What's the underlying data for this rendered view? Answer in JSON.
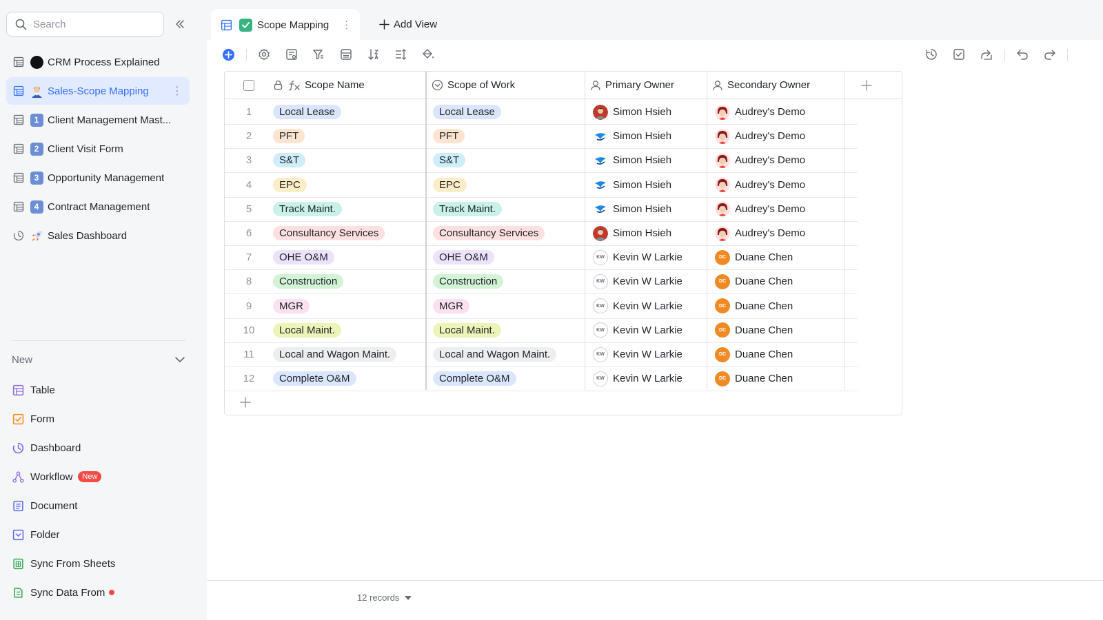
{
  "search": {
    "placeholder": "Search"
  },
  "sidebar": {
    "items": [
      {
        "label": "CRM Process Explained",
        "icon": "black-circle-emoji",
        "type": "table"
      },
      {
        "label": "Sales-Scope Mapping",
        "icon": "person-emoji",
        "type": "table",
        "active": true
      },
      {
        "label": "Client Management Mast...",
        "icon": "keycap-1",
        "number": "1",
        "type": "table"
      },
      {
        "label": "Client Visit Form",
        "icon": "keycap-2",
        "number": "2",
        "type": "table"
      },
      {
        "label": "Opportunity Management",
        "icon": "keycap-3",
        "number": "3",
        "type": "table"
      },
      {
        "label": "Contract Management",
        "icon": "keycap-4",
        "number": "4",
        "type": "table"
      },
      {
        "label": "Sales Dashboard",
        "icon": "rocket-emoji",
        "type": "dashboard"
      }
    ],
    "new_label": "New",
    "create_items": [
      {
        "label": "Table",
        "icon": "table-icon",
        "color": "#8e6be0"
      },
      {
        "label": "Form",
        "icon": "form-icon",
        "color": "#ff8800"
      },
      {
        "label": "Dashboard",
        "icon": "dashboard-icon",
        "color": "#5b65f5"
      },
      {
        "label": "Workflow",
        "icon": "workflow-icon",
        "color": "#8e6be0",
        "badge": "New"
      },
      {
        "label": "Document",
        "icon": "document-icon",
        "color": "#5b65f5"
      },
      {
        "label": "Folder",
        "icon": "folder-icon",
        "color": "#5b65f5"
      },
      {
        "label": "Sync From Sheets",
        "icon": "sheets-icon",
        "color": "#34a853"
      },
      {
        "label": "Sync Data From",
        "icon": "sync-data-icon",
        "color": "#34a853",
        "dot": true
      }
    ]
  },
  "tabs": {
    "active": {
      "label": "Scope Mapping",
      "icon": "check-emoji"
    },
    "add_view": "Add View"
  },
  "toolbar": {
    "left": [
      "add-record-icon",
      "settings-icon",
      "fields-icon",
      "filter-icon",
      "group-icon",
      "sort-icon",
      "row-height-icon",
      "color-fill-icon"
    ],
    "right": [
      "history-icon",
      "review-icon",
      "share-icon",
      "undo-icon",
      "redo-icon"
    ]
  },
  "colors": {
    "accent": "#3370ff",
    "active_bg": "#e1eaff",
    "border": "#dee0e3"
  },
  "table": {
    "columns": [
      {
        "label": "Scope Name",
        "icon": "formula-icon"
      },
      {
        "label": "Scope of Work",
        "icon": "single-select-icon"
      },
      {
        "label": "Primary Owner",
        "icon": "person-icon"
      },
      {
        "label": "Secondary Owner",
        "icon": "person-icon"
      }
    ],
    "rows": [
      {
        "num": "1",
        "scope": "Local Lease",
        "tag_color": "#dbe6fd",
        "primary": "Simon Hsieh",
        "primary_avatar": "photo",
        "secondary": "Audrey's Demo",
        "secondary_avatar": "cartoon"
      },
      {
        "num": "2",
        "scope": "PFT",
        "tag_color": "#fde4cf",
        "primary": "Simon Hsieh",
        "primary_avatar": "logo",
        "secondary": "Audrey's Demo",
        "secondary_avatar": "cartoon"
      },
      {
        "num": "3",
        "scope": "S&T",
        "tag_color": "#cfeefa",
        "primary": "Simon Hsieh",
        "primary_avatar": "logo",
        "secondary": "Audrey's Demo",
        "secondary_avatar": "cartoon"
      },
      {
        "num": "4",
        "scope": "EPC",
        "tag_color": "#fdeec7",
        "primary": "Simon Hsieh",
        "primary_avatar": "logo",
        "secondary": "Audrey's Demo",
        "secondary_avatar": "cartoon"
      },
      {
        "num": "5",
        "scope": "Track Maint.",
        "tag_color": "#c9f1ea",
        "primary": "Simon Hsieh",
        "primary_avatar": "logo",
        "secondary": "Audrey's Demo",
        "secondary_avatar": "cartoon"
      },
      {
        "num": "6",
        "scope": "Consultancy Services",
        "tag_color": "#fde0df",
        "primary": "Simon Hsieh",
        "primary_avatar": "photo",
        "secondary": "Audrey's Demo",
        "secondary_avatar": "cartoon"
      },
      {
        "num": "7",
        "scope": "OHE O&M",
        "tag_color": "#ece3fb",
        "primary": "Kevin W Larkie",
        "primary_avatar": "kw",
        "secondary": "Duane Chen",
        "secondary_avatar": "dc"
      },
      {
        "num": "8",
        "scope": "Construction",
        "tag_color": "#d3f3d6",
        "primary": "Kevin W Larkie",
        "primary_avatar": "kw",
        "secondary": "Duane Chen",
        "secondary_avatar": "dc"
      },
      {
        "num": "9",
        "scope": "MGR",
        "tag_color": "#fbe1ef",
        "primary": "Kevin W Larkie",
        "primary_avatar": "kw",
        "secondary": "Duane Chen",
        "secondary_avatar": "dc"
      },
      {
        "num": "10",
        "scope": "Local Maint.",
        "tag_color": "#eef4b8",
        "primary": "Kevin W Larkie",
        "primary_avatar": "kw",
        "secondary": "Duane Chen",
        "secondary_avatar": "dc"
      },
      {
        "num": "11",
        "scope": "Local and Wagon Maint.",
        "tag_color": "#eceeef",
        "primary": "Kevin W Larkie",
        "primary_avatar": "kw",
        "secondary": "Duane Chen",
        "secondary_avatar": "dc"
      },
      {
        "num": "12",
        "scope": "Complete O&M",
        "tag_color": "#dbe6fd",
        "primary": "Kevin W Larkie",
        "primary_avatar": "kw",
        "secondary": "Duane Chen",
        "secondary_avatar": "dc"
      }
    ],
    "avatar_text": {
      "kw": "KW",
      "dc": "DC"
    }
  },
  "footer": {
    "records": "12 records"
  }
}
